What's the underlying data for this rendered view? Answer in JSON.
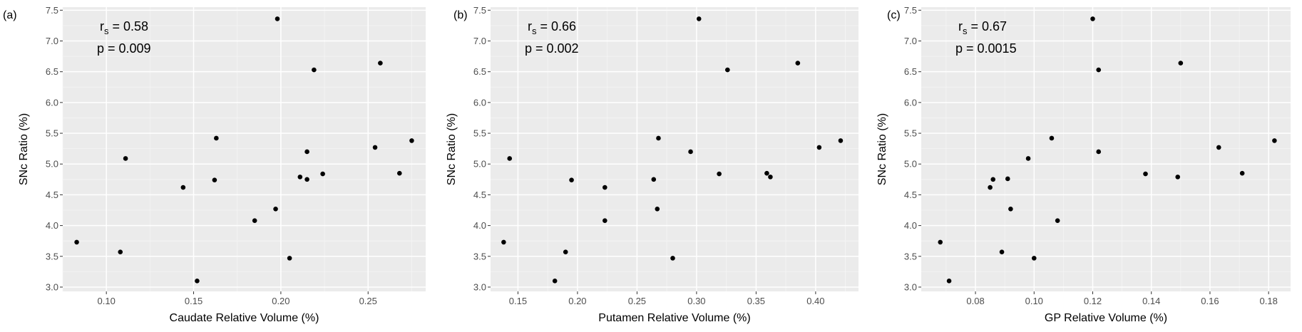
{
  "chart_data": [
    {
      "type": "scatter",
      "panel_label": "(a)",
      "title": "",
      "xlabel": "Caudate Relative Volume (%)",
      "ylabel": "SNc Ratio (%)",
      "xlim": [
        0.075,
        0.283
      ],
      "ylim": [
        2.93,
        7.55
      ],
      "xticks": [
        0.1,
        0.15,
        0.2,
        0.25
      ],
      "xtick_labels": [
        "0.10",
        "0.15",
        "0.20",
        "0.25"
      ],
      "yticks": [
        3.0,
        3.5,
        4.0,
        4.5,
        5.0,
        5.5,
        6.0,
        6.5,
        7.0,
        7.5
      ],
      "ytick_labels": [
        "3.0",
        "3.5",
        "4.0",
        "4.5",
        "5.0",
        "5.5",
        "6.0",
        "6.5",
        "7.0",
        "7.5"
      ],
      "annotation": {
        "rs_symbol": "r",
        "rs_sub": "s",
        "rs_value": " = 0.58",
        "p": "p = 0.009"
      },
      "points": [
        {
          "x": 0.083,
          "y": 3.73
        },
        {
          "x": 0.108,
          "y": 3.57
        },
        {
          "x": 0.111,
          "y": 5.09
        },
        {
          "x": 0.144,
          "y": 4.62
        },
        {
          "x": 0.152,
          "y": 3.1
        },
        {
          "x": 0.162,
          "y": 4.74
        },
        {
          "x": 0.163,
          "y": 5.42
        },
        {
          "x": 0.185,
          "y": 4.08
        },
        {
          "x": 0.197,
          "y": 4.27
        },
        {
          "x": 0.198,
          "y": 7.36
        },
        {
          "x": 0.205,
          "y": 3.47
        },
        {
          "x": 0.211,
          "y": 4.79
        },
        {
          "x": 0.215,
          "y": 5.2
        },
        {
          "x": 0.215,
          "y": 4.75
        },
        {
          "x": 0.219,
          "y": 6.53
        },
        {
          "x": 0.224,
          "y": 4.84
        },
        {
          "x": 0.254,
          "y": 5.27
        },
        {
          "x": 0.257,
          "y": 6.64
        },
        {
          "x": 0.268,
          "y": 4.85
        },
        {
          "x": 0.275,
          "y": 5.38
        }
      ]
    },
    {
      "type": "scatter",
      "panel_label": "(b)",
      "title": "",
      "xlabel": "Putamen Relative Volume (%)",
      "ylabel": "SNc Ratio (%)",
      "xlim": [
        0.127,
        0.436
      ],
      "ylim": [
        2.93,
        7.55
      ],
      "xticks": [
        0.15,
        0.2,
        0.25,
        0.3,
        0.35,
        0.4
      ],
      "xtick_labels": [
        "0.15",
        "0.20",
        "0.25",
        "0.30",
        "0.35",
        "0.40"
      ],
      "yticks": [
        3.0,
        3.5,
        4.0,
        4.5,
        5.0,
        5.5,
        6.0,
        6.5,
        7.0,
        7.5
      ],
      "ytick_labels": [
        "3.0",
        "3.5",
        "4.0",
        "4.5",
        "5.0",
        "5.5",
        "6.0",
        "6.5",
        "7.0",
        "7.5"
      ],
      "annotation": {
        "rs_symbol": "r",
        "rs_sub": "s",
        "rs_value": " = 0.66",
        "p": "p = 0.002"
      },
      "points": [
        {
          "x": 0.138,
          "y": 3.73
        },
        {
          "x": 0.143,
          "y": 5.09
        },
        {
          "x": 0.181,
          "y": 3.1
        },
        {
          "x": 0.19,
          "y": 3.57
        },
        {
          "x": 0.195,
          "y": 4.74
        },
        {
          "x": 0.223,
          "y": 4.62
        },
        {
          "x": 0.223,
          "y": 4.08
        },
        {
          "x": 0.264,
          "y": 4.75
        },
        {
          "x": 0.267,
          "y": 4.27
        },
        {
          "x": 0.268,
          "y": 5.42
        },
        {
          "x": 0.28,
          "y": 3.47
        },
        {
          "x": 0.295,
          "y": 5.2
        },
        {
          "x": 0.302,
          "y": 7.36
        },
        {
          "x": 0.319,
          "y": 4.84
        },
        {
          "x": 0.326,
          "y": 6.53
        },
        {
          "x": 0.359,
          "y": 4.85
        },
        {
          "x": 0.362,
          "y": 4.79
        },
        {
          "x": 0.385,
          "y": 6.64
        },
        {
          "x": 0.403,
          "y": 5.27
        },
        {
          "x": 0.421,
          "y": 5.38
        }
      ]
    },
    {
      "type": "scatter",
      "panel_label": "(c)",
      "title": "",
      "xlabel": "GP Relative Volume (%)",
      "ylabel": "SNc Ratio (%)",
      "xlim": [
        0.0615,
        0.1875
      ],
      "ylim": [
        2.93,
        7.55
      ],
      "xticks": [
        0.08,
        0.1,
        0.12,
        0.14,
        0.16,
        0.18
      ],
      "xtick_labels": [
        "0.08",
        "0.10",
        "0.12",
        "0.14",
        "0.16",
        "0.18"
      ],
      "yticks": [
        3.0,
        3.5,
        4.0,
        4.5,
        5.0,
        5.5,
        6.0,
        6.5,
        7.0,
        7.5
      ],
      "ytick_labels": [
        "3.0",
        "3.5",
        "4.0",
        "4.5",
        "5.0",
        "5.5",
        "6.0",
        "6.5",
        "7.0",
        "7.5"
      ],
      "annotation": {
        "rs_symbol": "r",
        "rs_sub": "s",
        "rs_value": " = 0.67",
        "p": "p = 0.0015"
      },
      "points": [
        {
          "x": 0.068,
          "y": 3.73
        },
        {
          "x": 0.071,
          "y": 3.1
        },
        {
          "x": 0.085,
          "y": 4.62
        },
        {
          "x": 0.086,
          "y": 4.75
        },
        {
          "x": 0.089,
          "y": 3.57
        },
        {
          "x": 0.091,
          "y": 4.76
        },
        {
          "x": 0.092,
          "y": 4.27
        },
        {
          "x": 0.098,
          "y": 5.09
        },
        {
          "x": 0.1,
          "y": 3.47
        },
        {
          "x": 0.106,
          "y": 5.42
        },
        {
          "x": 0.108,
          "y": 4.08
        },
        {
          "x": 0.12,
          "y": 7.36
        },
        {
          "x": 0.122,
          "y": 6.53
        },
        {
          "x": 0.122,
          "y": 5.2
        },
        {
          "x": 0.138,
          "y": 4.84
        },
        {
          "x": 0.149,
          "y": 4.79
        },
        {
          "x": 0.15,
          "y": 6.64
        },
        {
          "x": 0.163,
          "y": 5.27
        },
        {
          "x": 0.171,
          "y": 4.85
        },
        {
          "x": 0.182,
          "y": 5.38
        }
      ]
    }
  ],
  "colors": {
    "panel_bg": "#ebebeb",
    "grid_major": "#ffffff",
    "grid_minor": "#f5f5f5",
    "point": "#000000",
    "tick_text": "#4d4d4d",
    "tick_mark": "#333333",
    "label_text": "#000000"
  }
}
